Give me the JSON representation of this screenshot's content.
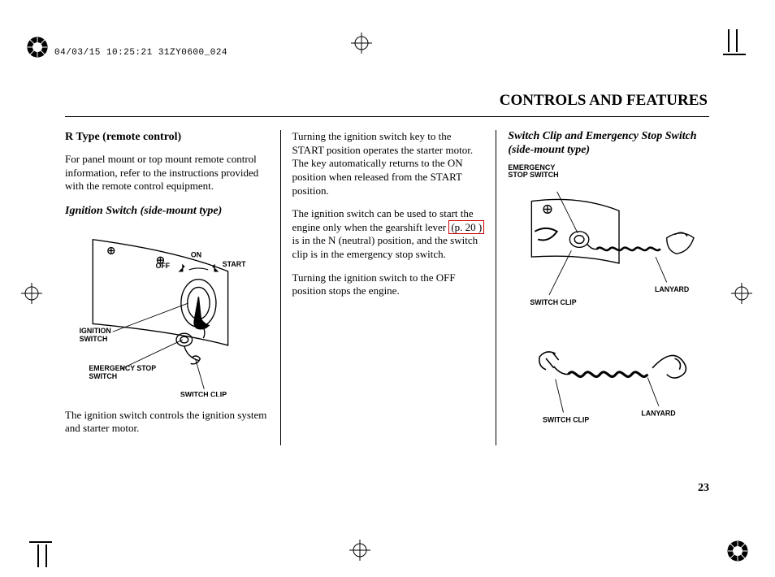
{
  "header": {
    "stamp": "04/03/15 10:25:21 31ZY0600_024"
  },
  "title": "CONTROLS AND FEATURES",
  "col1": {
    "heading": "R Type (remote control)",
    "p1": "For panel mount or top mount remote control information, refer to the instructions provided with the remote control equipment.",
    "subheading": "Ignition Switch (side-mount type)",
    "labels": {
      "on": "ON",
      "off": "OFF",
      "start": "START",
      "ignition_switch": "IGNITION SWITCH",
      "emergency_stop_switch": "EMERGENCY STOP SWITCH",
      "switch_clip": "SWITCH CLIP"
    },
    "p2": "The ignition switch controls the ignition system and starter motor."
  },
  "col2": {
    "p1": "Turning the ignition switch key to the START position operates the starter motor. The key automatically returns to the ON position when released from the START position.",
    "p2a": "The ignition switch can be used to start the engine only when the gearshift lever ",
    "p2_ref": "(p. 20 )",
    "p2b": " is in the N (neutral) position, and the switch clip is in the emergency stop switch.",
    "p3": "Turning the ignition switch to the OFF position stops the engine."
  },
  "col3": {
    "subheading": "Switch Clip and Emergency Stop Switch (side-mount type)",
    "labels": {
      "emergency_stop_switch": "EMERGENCY STOP SWITCH",
      "lanyard": "LANYARD",
      "switch_clip": "SWITCH CLIP"
    }
  },
  "page_number": "23",
  "colors": {
    "text": "#000000",
    "ref_border": "#cc0000",
    "bg": "#ffffff"
  }
}
